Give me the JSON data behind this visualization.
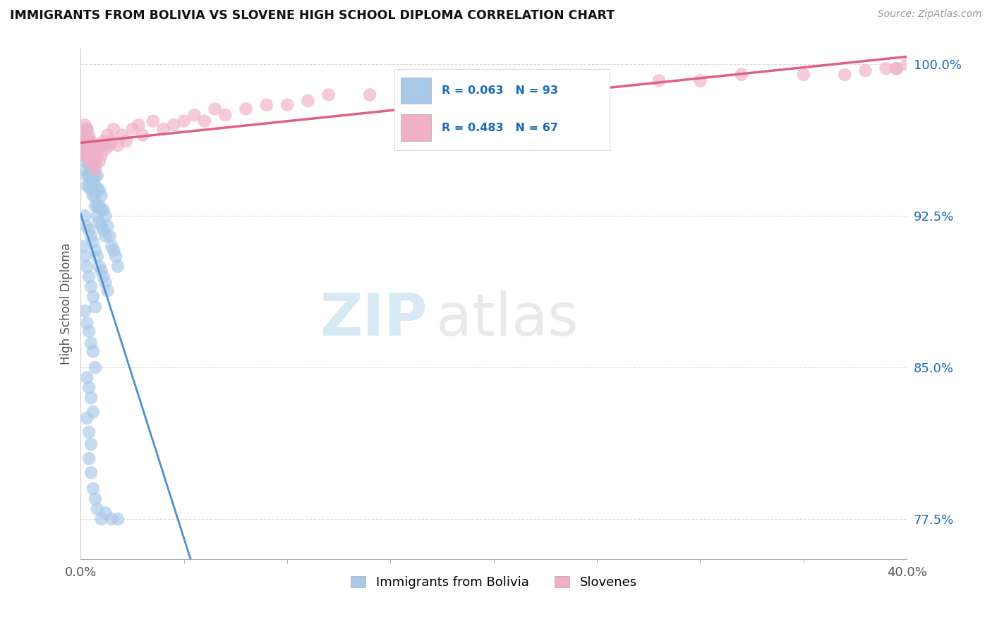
{
  "title": "IMMIGRANTS FROM BOLIVIA VS SLOVENE HIGH SCHOOL DIPLOMA CORRELATION CHART",
  "source": "Source: ZipAtlas.com",
  "xlabel_bolivia": "Immigrants from Bolivia",
  "xlabel_slovenes": "Slovenes",
  "ylabel": "High School Diploma",
  "xlim": [
    0.0,
    0.4
  ],
  "ylim": [
    0.755,
    1.008
  ],
  "y_ticks": [
    0.775,
    0.85,
    0.925,
    1.0
  ],
  "y_tick_labels": [
    "77.5%",
    "85.0%",
    "92.5%",
    "100.0%"
  ],
  "bolivia_color": "#a8c8e8",
  "slovene_color": "#f0b0c8",
  "bolivia_line_color": "#5090d0",
  "slovene_line_color": "#e06080",
  "bolivia_R": 0.063,
  "bolivia_N": 93,
  "slovene_R": 0.483,
  "slovene_N": 67,
  "legend_R_color": "#1a6bb5",
  "bolivia_x": [
    0.001,
    0.001,
    0.002,
    0.002,
    0.002,
    0.002,
    0.003,
    0.003,
    0.003,
    0.003,
    0.003,
    0.004,
    0.004,
    0.004,
    0.004,
    0.004,
    0.004,
    0.005,
    0.005,
    0.005,
    0.005,
    0.005,
    0.005,
    0.006,
    0.006,
    0.006,
    0.006,
    0.006,
    0.007,
    0.007,
    0.007,
    0.007,
    0.007,
    0.008,
    0.008,
    0.008,
    0.008,
    0.009,
    0.009,
    0.009,
    0.01,
    0.01,
    0.01,
    0.011,
    0.011,
    0.012,
    0.012,
    0.013,
    0.014,
    0.015,
    0.016,
    0.017,
    0.018,
    0.002,
    0.003,
    0.004,
    0.005,
    0.006,
    0.007,
    0.008,
    0.009,
    0.01,
    0.011,
    0.012,
    0.013,
    0.001,
    0.002,
    0.003,
    0.004,
    0.005,
    0.006,
    0.007,
    0.002,
    0.003,
    0.004,
    0.005,
    0.006,
    0.007,
    0.003,
    0.004,
    0.005,
    0.006,
    0.003,
    0.004,
    0.005,
    0.004,
    0.005,
    0.006,
    0.007,
    0.008,
    0.01,
    0.012,
    0.015,
    0.018
  ],
  "bolivia_y": [
    0.958,
    0.962,
    0.96,
    0.955,
    0.965,
    0.948,
    0.957,
    0.952,
    0.968,
    0.945,
    0.94,
    0.963,
    0.95,
    0.945,
    0.96,
    0.955,
    0.94,
    0.955,
    0.948,
    0.96,
    0.945,
    0.95,
    0.938,
    0.955,
    0.948,
    0.942,
    0.935,
    0.96,
    0.95,
    0.945,
    0.94,
    0.935,
    0.93,
    0.945,
    0.938,
    0.93,
    0.925,
    0.938,
    0.93,
    0.922,
    0.935,
    0.928,
    0.92,
    0.928,
    0.918,
    0.925,
    0.915,
    0.92,
    0.915,
    0.91,
    0.908,
    0.905,
    0.9,
    0.925,
    0.92,
    0.918,
    0.915,
    0.912,
    0.908,
    0.905,
    0.9,
    0.898,
    0.895,
    0.892,
    0.888,
    0.91,
    0.905,
    0.9,
    0.895,
    0.89,
    0.885,
    0.88,
    0.878,
    0.872,
    0.868,
    0.862,
    0.858,
    0.85,
    0.845,
    0.84,
    0.835,
    0.828,
    0.825,
    0.818,
    0.812,
    0.805,
    0.798,
    0.79,
    0.785,
    0.78,
    0.775,
    0.778,
    0.775,
    0.775
  ],
  "slovene_x": [
    0.001,
    0.001,
    0.002,
    0.002,
    0.002,
    0.003,
    0.003,
    0.003,
    0.004,
    0.004,
    0.004,
    0.005,
    0.005,
    0.005,
    0.006,
    0.006,
    0.006,
    0.007,
    0.007,
    0.007,
    0.008,
    0.008,
    0.009,
    0.009,
    0.01,
    0.01,
    0.011,
    0.012,
    0.013,
    0.014,
    0.015,
    0.016,
    0.018,
    0.02,
    0.022,
    0.025,
    0.028,
    0.03,
    0.035,
    0.04,
    0.045,
    0.05,
    0.055,
    0.06,
    0.065,
    0.07,
    0.08,
    0.09,
    0.1,
    0.11,
    0.12,
    0.14,
    0.16,
    0.18,
    0.2,
    0.22,
    0.25,
    0.28,
    0.3,
    0.32,
    0.35,
    0.37,
    0.38,
    0.39,
    0.395,
    0.395,
    0.4
  ],
  "slovene_y": [
    0.965,
    0.958,
    0.97,
    0.962,
    0.955,
    0.968,
    0.96,
    0.955,
    0.965,
    0.958,
    0.952,
    0.962,
    0.955,
    0.96,
    0.96,
    0.955,
    0.95,
    0.958,
    0.952,
    0.948,
    0.955,
    0.96,
    0.958,
    0.952,
    0.96,
    0.955,
    0.962,
    0.958,
    0.965,
    0.96,
    0.962,
    0.968,
    0.96,
    0.965,
    0.962,
    0.968,
    0.97,
    0.965,
    0.972,
    0.968,
    0.97,
    0.972,
    0.975,
    0.972,
    0.978,
    0.975,
    0.978,
    0.98,
    0.98,
    0.982,
    0.985,
    0.985,
    0.988,
    0.985,
    0.988,
    0.99,
    0.99,
    0.992,
    0.992,
    0.995,
    0.995,
    0.995,
    0.997,
    0.998,
    0.998,
    0.998,
    1.0
  ]
}
